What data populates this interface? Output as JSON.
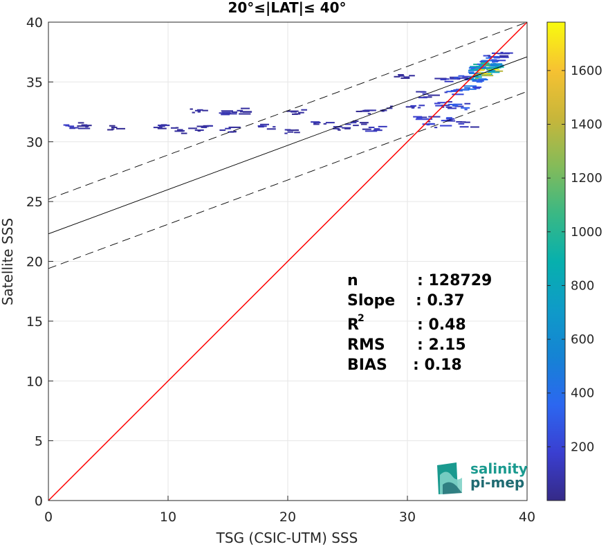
{
  "chart_data": {
    "type": "heatmap",
    "title": "20°≤|LAT|≤ 40°",
    "xlabel": "TSG (CSIC-UTM) SSS",
    "ylabel": "Satellite SSS",
    "xlim": [
      0,
      40
    ],
    "ylim": [
      0,
      40
    ],
    "x_ticks": [
      "0",
      "10",
      "20",
      "30",
      "40"
    ],
    "y_ticks": [
      "0",
      "5",
      "10",
      "15",
      "20",
      "25",
      "30",
      "35",
      "40"
    ],
    "grid": true,
    "colorbar": {
      "colormap": "parula",
      "range": [
        0,
        1780
      ],
      "ticks": [
        "200",
        "400",
        "600",
        "800",
        "1000",
        "1200",
        "1400",
        "1600"
      ],
      "tick_values": [
        200,
        400,
        600,
        800,
        1000,
        1200,
        1400,
        1600
      ]
    },
    "lines": {
      "identity": {
        "slope": 1,
        "intercept": 0,
        "color": "#ff0000"
      },
      "fit": {
        "slope": 0.37,
        "intercept": 22.3,
        "color": "#000000"
      },
      "fit_upper": {
        "slope": 0.37,
        "intercept": 25.2,
        "dash": true
      },
      "fit_lower": {
        "slope": 0.37,
        "intercept": 19.4,
        "dash": true
      }
    },
    "density_cells": [
      {
        "x": 1.5,
        "y": 31.4,
        "c": 150
      },
      {
        "x": 3.0,
        "y": 31.4,
        "c": 60
      },
      {
        "x": 5.5,
        "y": 31.2,
        "c": 40
      },
      {
        "x": 9.5,
        "y": 31.3,
        "c": 80
      },
      {
        "x": 11.0,
        "y": 31.0,
        "c": 60
      },
      {
        "x": 13.0,
        "y": 31.2,
        "c": 80
      },
      {
        "x": 15.0,
        "y": 31.1,
        "c": 100
      },
      {
        "x": 12.5,
        "y": 32.6,
        "c": 70
      },
      {
        "x": 14.5,
        "y": 32.4,
        "c": 100
      },
      {
        "x": 16.0,
        "y": 32.6,
        "c": 60
      },
      {
        "x": 18.0,
        "y": 31.3,
        "c": 120
      },
      {
        "x": 20.0,
        "y": 31.0,
        "c": 80
      },
      {
        "x": 20.5,
        "y": 32.5,
        "c": 70
      },
      {
        "x": 22.5,
        "y": 31.6,
        "c": 100
      },
      {
        "x": 24.0,
        "y": 31.1,
        "c": 80
      },
      {
        "x": 25.5,
        "y": 31.6,
        "c": 100
      },
      {
        "x": 26.5,
        "y": 32.6,
        "c": 80
      },
      {
        "x": 27.0,
        "y": 31.2,
        "c": 120
      },
      {
        "x": 28.5,
        "y": 32.8,
        "c": 90
      },
      {
        "x": 29.5,
        "y": 35.5,
        "c": 60
      },
      {
        "x": 30.5,
        "y": 33.0,
        "c": 150
      },
      {
        "x": 31.0,
        "y": 32.0,
        "c": 200
      },
      {
        "x": 31.5,
        "y": 34.0,
        "c": 120
      },
      {
        "x": 32.0,
        "y": 31.5,
        "c": 220
      },
      {
        "x": 32.5,
        "y": 33.2,
        "c": 180
      },
      {
        "x": 33.0,
        "y": 35.2,
        "c": 150
      },
      {
        "x": 33.5,
        "y": 32.0,
        "c": 250
      },
      {
        "x": 33.5,
        "y": 34.2,
        "c": 280
      },
      {
        "x": 34.0,
        "y": 33.0,
        "c": 300
      },
      {
        "x": 34.5,
        "y": 35.5,
        "c": 260
      },
      {
        "x": 34.5,
        "y": 31.5,
        "c": 150
      },
      {
        "x": 35.0,
        "y": 34.5,
        "c": 420
      },
      {
        "x": 35.3,
        "y": 35.3,
        "c": 600
      },
      {
        "x": 35.5,
        "y": 36.0,
        "c": 700
      },
      {
        "x": 35.8,
        "y": 35.6,
        "c": 1300
      },
      {
        "x": 36.0,
        "y": 36.3,
        "c": 900
      },
      {
        "x": 36.2,
        "y": 36.0,
        "c": 1700
      },
      {
        "x": 36.4,
        "y": 36.6,
        "c": 600
      },
      {
        "x": 36.6,
        "y": 36.4,
        "c": 1100
      },
      {
        "x": 36.8,
        "y": 37.0,
        "c": 400
      },
      {
        "x": 37.0,
        "y": 37.1,
        "c": 250
      },
      {
        "x": 37.3,
        "y": 37.4,
        "c": 150
      }
    ]
  },
  "stats": {
    "n_label": "n",
    "n_value": ": 128729",
    "slope_label": "Slope",
    "slope_value": ": 0.37",
    "r2_label": "R",
    "r2_sup": "2",
    "r2_value": ": 0.48",
    "rms_label": "RMS",
    "rms_value": ": 2.15",
    "bias_label": "BIAS",
    "bias_value": ": 0.18"
  },
  "logo": {
    "line1": "salinity",
    "line2": "pi-mep",
    "colors": [
      "#1a9a8f",
      "#1f6b72",
      "#7fd1c6"
    ]
  }
}
